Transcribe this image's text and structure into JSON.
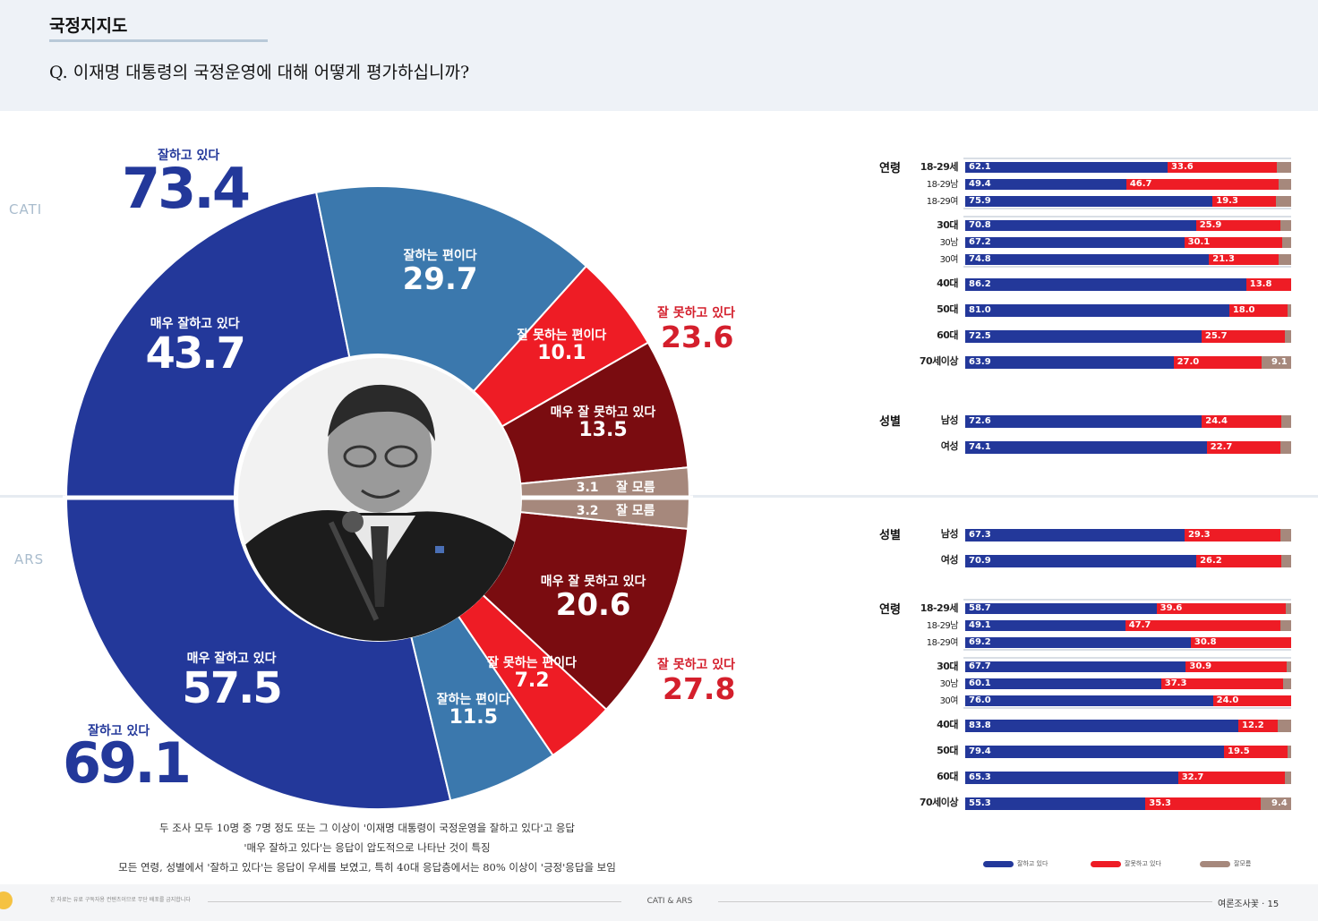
{
  "header": {
    "section_title": "국정지지도",
    "question": "Q. 이재명 대통령의 국정운영에 대해 어떻게 평가하십니까?"
  },
  "method_labels": {
    "top": "CATI",
    "bottom": "ARS"
  },
  "colors": {
    "very_good": "#23389a",
    "good": "#3b78ad",
    "bad": "#ee1c25",
    "very_bad": "#7a0c10",
    "dont_know": "#a6887c",
    "pos_text": "#23389a",
    "neg_text": "#d41f2c"
  },
  "chart_data": [
    {
      "type": "pie",
      "name": "CATI",
      "slices": [
        {
          "label": "매우 잘하고 있다",
          "value": 43.7,
          "key": "very_good"
        },
        {
          "label": "잘하는 편이다",
          "value": 29.7,
          "key": "good"
        },
        {
          "label": "잘 못하는 편이다",
          "value": 10.1,
          "key": "bad"
        },
        {
          "label": "매우 잘 못하고 있다",
          "value": 13.5,
          "key": "very_bad"
        },
        {
          "label": "잘 모름",
          "value": 3.1,
          "key": "dont_know"
        }
      ],
      "totals": [
        {
          "label": "잘하고 있다",
          "value": "73.4"
        },
        {
          "label": "잘 못하고 있다",
          "value": "23.6"
        }
      ]
    },
    {
      "type": "pie",
      "name": "ARS",
      "slices": [
        {
          "label": "매우 잘하고 있다",
          "value": 57.5,
          "key": "very_good"
        },
        {
          "label": "잘하는 편이다",
          "value": 11.5,
          "key": "good"
        },
        {
          "label": "잘 못하는 편이다",
          "value": 7.2,
          "key": "bad"
        },
        {
          "label": "매우 잘 못하고 있다",
          "value": 20.6,
          "key": "very_bad"
        },
        {
          "label": "잘 모름",
          "value": 3.2,
          "key": "dont_know"
        }
      ],
      "totals": [
        {
          "label": "잘하고 있다",
          "value": "69.1"
        },
        {
          "label": "잘 못하고 있다",
          "value": "27.8"
        }
      ]
    },
    {
      "type": "bar",
      "name": "CATI 연령·성별",
      "stacked": true,
      "groups": [
        {
          "title": "연령",
          "clusters": [
            [
              {
                "label": "18-29세",
                "bold": true,
                "pos": 62.1,
                "neg": 33.6,
                "dk": null
              },
              {
                "label": "18-29남",
                "bold": false,
                "pos": 49.4,
                "neg": 46.7,
                "dk": null
              },
              {
                "label": "18-29여",
                "bold": false,
                "pos": 75.9,
                "neg": 19.3,
                "dk": null
              }
            ],
            [
              {
                "label": "30대",
                "bold": true,
                "pos": 70.8,
                "neg": 25.9,
                "dk": null
              },
              {
                "label": "30남",
                "bold": false,
                "pos": 67.2,
                "neg": 30.1,
                "dk": null
              },
              {
                "label": "30여",
                "bold": false,
                "pos": 74.8,
                "neg": 21.3,
                "dk": null
              }
            ],
            [
              {
                "label": "40대",
                "bold": true,
                "pos": 86.2,
                "neg": 13.8,
                "dk": null
              }
            ],
            [
              {
                "label": "50대",
                "bold": true,
                "pos": 81.0,
                "neg": 18.0,
                "dk": null
              }
            ],
            [
              {
                "label": "60대",
                "bold": true,
                "pos": 72.5,
                "neg": 25.7,
                "dk": null
              }
            ],
            [
              {
                "label": "70세이상",
                "bold": true,
                "pos": 63.9,
                "neg": 27.0,
                "dk": 9.1
              }
            ]
          ]
        },
        {
          "title": "성별",
          "clusters": [
            [
              {
                "label": "남성",
                "bold": true,
                "pos": 72.6,
                "neg": 24.4,
                "dk": null
              }
            ],
            [
              {
                "label": "여성",
                "bold": true,
                "pos": 74.1,
                "neg": 22.7,
                "dk": null
              }
            ]
          ]
        }
      ]
    },
    {
      "type": "bar",
      "name": "ARS 성별·연령",
      "stacked": true,
      "groups": [
        {
          "title": "성별",
          "clusters": [
            [
              {
                "label": "남성",
                "bold": true,
                "pos": 67.3,
                "neg": 29.3,
                "dk": null
              }
            ],
            [
              {
                "label": "여성",
                "bold": true,
                "pos": 70.9,
                "neg": 26.2,
                "dk": null
              }
            ]
          ]
        },
        {
          "title": "연령",
          "clusters": [
            [
              {
                "label": "18-29세",
                "bold": true,
                "pos": 58.7,
                "neg": 39.6,
                "dk": null
              },
              {
                "label": "18-29남",
                "bold": false,
                "pos": 49.1,
                "neg": 47.7,
                "dk": null
              },
              {
                "label": "18-29여",
                "bold": false,
                "pos": 69.2,
                "neg": 30.8,
                "dk": null
              }
            ],
            [
              {
                "label": "30대",
                "bold": true,
                "pos": 67.7,
                "neg": 30.9,
                "dk": null
              },
              {
                "label": "30남",
                "bold": false,
                "pos": 60.1,
                "neg": 37.3,
                "dk": null
              },
              {
                "label": "30여",
                "bold": false,
                "pos": 76.0,
                "neg": 24.0,
                "dk": null
              }
            ],
            [
              {
                "label": "40대",
                "bold": true,
                "pos": 83.8,
                "neg": 12.2,
                "dk": null
              }
            ],
            [
              {
                "label": "50대",
                "bold": true,
                "pos": 79.4,
                "neg": 19.5,
                "dk": null
              }
            ],
            [
              {
                "label": "60대",
                "bold": true,
                "pos": 65.3,
                "neg": 32.7,
                "dk": null
              }
            ],
            [
              {
                "label": "70세이상",
                "bold": true,
                "pos": 55.3,
                "neg": 35.3,
                "dk": 9.4
              }
            ]
          ]
        }
      ]
    }
  ],
  "legend": [
    {
      "label": "잘하고 있다",
      "key": "very_good"
    },
    {
      "label": "잘못하고 있다",
      "key": "bad"
    },
    {
      "label": "잘모름",
      "key": "dont_know"
    }
  ],
  "notes": [
    "두 조사 모두 10명 중 7명 정도 또는 그 이상이 '이재명 대통령이 국정운영을 잘하고 있다'고 응답",
    "'매우 잘하고 있다'는 응답이 압도적으로 나타난 것이 특징",
    "모든 연령, 성별에서 '잘하고 있다'는 응답이 우세를 보였고, 특히 40대 응답층에서는 80% 이상이 '긍정'응답을 보임"
  ],
  "footer": {
    "left": "본 자료는 유료 구독자용 컨텐츠이므로 무단 배포를 금지합니다",
    "center": "CATI & ARS",
    "right": "여론조사꽃 · 15"
  }
}
